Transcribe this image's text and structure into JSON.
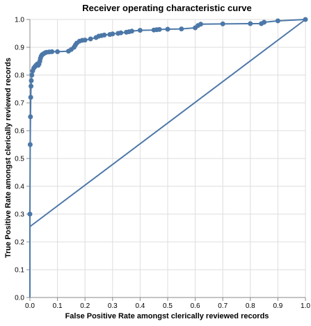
{
  "chart_data": {
    "type": "line",
    "title": "Receiver operating characteristic curve",
    "xlabel": "False Positive Rate amongst clerically reviewed records",
    "ylabel": "True Positive Rate amongst clerically reviewed records",
    "xlim": [
      0,
      1
    ],
    "ylim": [
      0,
      1
    ],
    "x_ticks": [
      "0.0",
      "0.1",
      "0.2",
      "0.3",
      "0.4",
      "0.5",
      "0.6",
      "0.7",
      "0.8",
      "0.9",
      "1.0"
    ],
    "y_ticks": [
      "0.0",
      "0.1",
      "0.2",
      "0.3",
      "0.4",
      "0.5",
      "0.6",
      "0.7",
      "0.8",
      "0.9",
      "1.0"
    ],
    "grid": true,
    "series": [
      {
        "color": "#4c78a8",
        "x": [
          0,
          0,
          0.001,
          0.002,
          0.003,
          0.004,
          0.005,
          0.007,
          0.01,
          0.014,
          0.018,
          0.022,
          0.027,
          0.03,
          0.033,
          0.036,
          0.038,
          0.041,
          0.044,
          0.047,
          0.05,
          0.055,
          0.06,
          0.07,
          0.08,
          0.1,
          0.14,
          0.15,
          0.16,
          0.165,
          0.17,
          0.18,
          0.19,
          0.2,
          0.22,
          0.24,
          0.25,
          0.26,
          0.27,
          0.29,
          0.3,
          0.32,
          0.33,
          0.35,
          0.36,
          0.37,
          0.4,
          0.45,
          0.46,
          0.47,
          0.5,
          0.55,
          0.6,
          0.61,
          0.62,
          0.7,
          0.8,
          0.84,
          0.85,
          0.9,
          1.0
        ],
        "y": [
          0,
          0.3,
          0.55,
          0.65,
          0.72,
          0.76,
          0.78,
          0.8,
          0.815,
          0.825,
          0.83,
          0.835,
          0.84,
          0.835,
          0.84,
          0.85,
          0.86,
          0.868,
          0.873,
          0.875,
          0.877,
          0.88,
          0.882,
          0.883,
          0.884,
          0.884,
          0.886,
          0.892,
          0.9,
          0.908,
          0.915,
          0.922,
          0.925,
          0.926,
          0.93,
          0.935,
          0.94,
          0.942,
          0.944,
          0.946,
          0.948,
          0.95,
          0.952,
          0.954,
          0.956,
          0.958,
          0.961,
          0.962,
          0.963,
          0.964,
          0.965,
          0.966,
          0.97,
          0.978,
          0.983,
          0.984,
          0.985,
          0.985,
          0.99,
          0.995,
          1.0
        ]
      },
      {
        "color": "#4c78a8",
        "x": [
          0,
          1
        ],
        "y": [
          0.255,
          1.0
        ]
      }
    ]
  }
}
